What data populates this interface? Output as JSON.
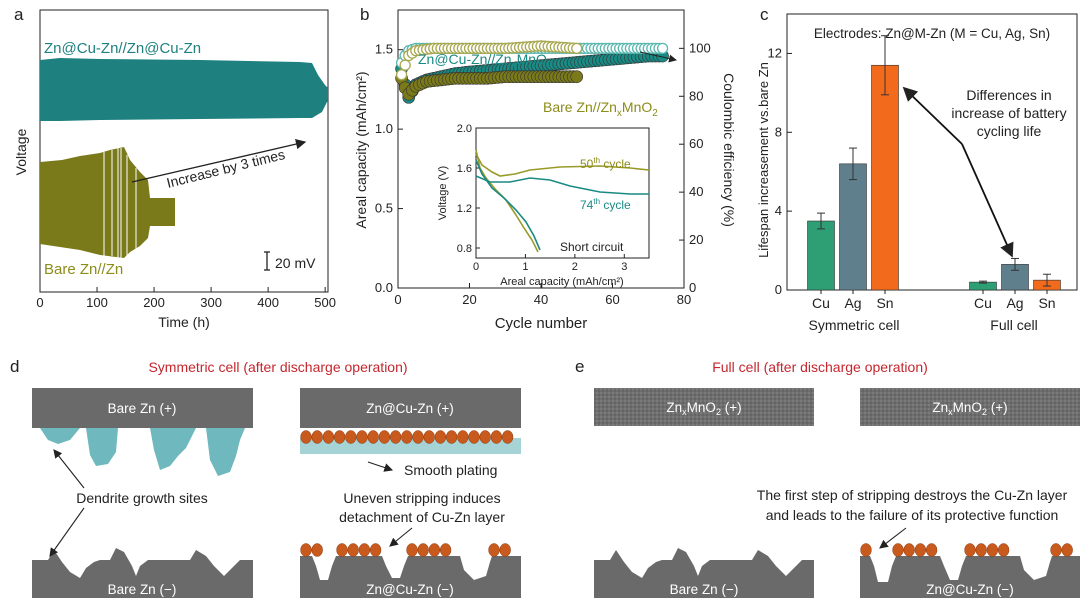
{
  "panels": {
    "a": {
      "letter": "a",
      "ylabel": "Voltage",
      "xlabel": "Time (h)",
      "xticks": [
        "0",
        "100",
        "200",
        "300",
        "400",
        "500"
      ],
      "label_top": "Zn@Cu-Zn//Zn@Cu-Zn",
      "label_bottom": "Bare Zn//Zn",
      "annotation": "Increase by 3 times",
      "scalebar": "20 mV",
      "colors": {
        "top": "#1f8080",
        "bottom": "#7a7a1a"
      }
    },
    "b": {
      "letter": "b",
      "ylabel_left": "Areal capacity (mAh/cm²)",
      "ylabel_right": "Coulombic efficiency (%)",
      "xlabel": "Cycle number",
      "xticks": [
        "0",
        "20",
        "40",
        "60",
        "80"
      ],
      "yticks_left": [
        "0.0",
        "0.5",
        "1.0",
        "1.5"
      ],
      "yticks_right": [
        "0",
        "20",
        "40",
        "60",
        "80",
        "100"
      ],
      "label_cu_a": "Zn@Cu-Zn//Zn",
      "label_cu_sub": "x",
      "label_cu_b": "MnO",
      "label_cu_sub2": "2",
      "label_bare_a": "Bare Zn//Zn",
      "label_bare_sub": "x",
      "label_bare_b": "MnO",
      "label_bare_sub2": "2",
      "inset": {
        "ylabel": "Voltage (V)",
        "xlabel": "Areal capacity (mAh/cm²)",
        "xticks": [
          "0",
          "1",
          "2",
          "3"
        ],
        "yticks": [
          "0.8",
          "1.2",
          "1.6",
          "2.0"
        ],
        "label_50_a": "50",
        "label_50_sup": "th",
        "label_50_b": " cycle",
        "label_74_a": "74",
        "label_74_sup": "th",
        "label_74_b": " cycle",
        "short": "Short circuit"
      }
    },
    "c": {
      "letter": "c",
      "header": "Electrodes: Zn@M-Zn (M = Cu, Ag, Sn)",
      "ylabel": "Lifespan increasement vs.bare Zn",
      "yticks": [
        "0",
        "4",
        "8",
        "12"
      ],
      "note_line1": "Differences in",
      "note_line2": "increase of battery",
      "note_line3": "cycling life",
      "group1": "Symmetric cell",
      "group2": "Full cell"
    },
    "d": {
      "letter": "d",
      "title": "Symmetric cell (after discharge operation)",
      "top_left": "Bare Zn (+)",
      "top_right": "Zn@Cu-Zn (+)",
      "bottom_left": "Bare Zn (−)",
      "bottom_right": "Zn@Cu-Zn (−)",
      "dendrite": "Dendrite growth sites",
      "smooth": "Smooth plating",
      "uneven_line1": "Uneven stripping induces",
      "uneven_line2": "detachment of Cu-Zn layer"
    },
    "e": {
      "letter": "e",
      "title": "Full cell (after discharge operation)",
      "top_left_a": "Zn",
      "top_left_sub": "x",
      "top_left_b": "MnO",
      "top_left_sub2": "2",
      "top_left_c": " (+)",
      "top_right_a": "Zn",
      "top_right_sub": "x",
      "top_right_b": "MnO",
      "top_right_sub2": "2",
      "top_right_c": " (+)",
      "bottom_left": "Bare Zn (−)",
      "bottom_right": "Zn@Cu-Zn (−)",
      "note_line1": "The first step of stripping destroys the Cu-Zn layer",
      "note_line2": "and leads to the failure of its protective function"
    }
  },
  "chart_data": [
    {
      "type": "line",
      "title": "",
      "xlabel": "Time (h)",
      "ylabel": "Voltage",
      "xlim": [
        0,
        500
      ],
      "series": [
        {
          "name": "Zn@Cu-Zn//Zn@Cu-Zn",
          "x_end": 500,
          "color": "#1f8080"
        },
        {
          "name": "Bare Zn//Zn",
          "x_end": 230,
          "color": "#7a7a1a"
        }
      ]
    },
    {
      "type": "scatter",
      "title": "",
      "xlabel": "Cycle number",
      "ylabel": "Areal capacity (mAh/cm²)",
      "ylabel_right": "Coulombic efficiency (%)",
      "xlim": [
        0,
        80
      ],
      "ylim": [
        0,
        1.75
      ],
      "ylim_right": [
        0,
        116
      ],
      "series": [
        {
          "name": "Zn@Cu-Zn//ZnxMnO2 capacity",
          "color": "#1a8a84",
          "x": [
            1,
            2,
            3,
            5,
            8,
            12,
            16,
            20,
            25,
            30,
            35,
            40,
            45,
            50,
            55,
            60,
            65,
            70,
            74
          ],
          "y": [
            1.38,
            1.28,
            1.2,
            1.28,
            1.31,
            1.33,
            1.35,
            1.36,
            1.37,
            1.38,
            1.39,
            1.4,
            1.41,
            1.42,
            1.43,
            1.44,
            1.45,
            1.46,
            1.46
          ]
        },
        {
          "name": "Bare Zn//ZnxMnO2 capacity",
          "color": "#7a7a1a",
          "x": [
            1,
            2,
            3,
            5,
            8,
            12,
            16,
            20,
            25,
            30,
            35,
            40,
            45,
            50
          ],
          "y": [
            1.32,
            1.26,
            1.22,
            1.27,
            1.3,
            1.31,
            1.32,
            1.32,
            1.32,
            1.33,
            1.33,
            1.33,
            1.33,
            1.33
          ]
        },
        {
          "name": "Zn@Cu-Zn//ZnxMnO2 CE",
          "color": "#5ab8b0",
          "x": [
            1,
            2,
            3,
            5,
            10,
            20,
            30,
            40,
            50,
            60,
            70,
            74
          ],
          "y": [
            94,
            97,
            99,
            100,
            100,
            100,
            100,
            100,
            100,
            100,
            100,
            100
          ]
        },
        {
          "name": "Bare Zn//ZnxMnO2 CE",
          "color": "#a8a850",
          "x": [
            1,
            2,
            3,
            5,
            10,
            20,
            30,
            40,
            50
          ],
          "y": [
            89,
            93,
            97,
            99,
            100,
            100,
            100,
            101,
            100
          ]
        }
      ]
    },
    {
      "type": "bar",
      "title": "",
      "ylabel": "Lifespan increasement vs.bare Zn",
      "ylim": [
        0,
        14
      ],
      "categories": [
        "Cu",
        "Ag",
        "Sn",
        "Cu",
        "Ag",
        "Sn"
      ],
      "groups": [
        "Symmetric cell",
        "Symmetric cell",
        "Symmetric cell",
        "Full cell",
        "Full cell",
        "Full cell"
      ],
      "values": [
        3.5,
        6.4,
        11.4,
        0.4,
        1.3,
        0.5
      ],
      "errors": [
        0.4,
        0.8,
        1.5,
        0.05,
        0.3,
        0.3
      ],
      "colors": [
        "#2e9e74",
        "#5f7f8c",
        "#f26b1d",
        "#2e9e74",
        "#5f7f8c",
        "#f26b1d"
      ]
    }
  ]
}
